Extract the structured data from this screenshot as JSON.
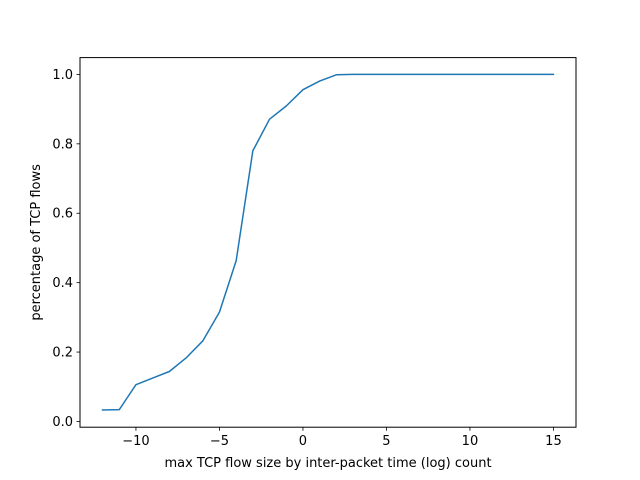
{
  "chart_data": {
    "type": "line",
    "title": "",
    "xlabel": "max TCP flow size by inter-packet time (log) count",
    "ylabel": "percentage of TCP flows",
    "xlim": [
      -13.35,
      16.35
    ],
    "ylim": [
      -0.0165,
      1.0485
    ],
    "x_ticks": [
      -10,
      -5,
      0,
      5,
      10,
      15
    ],
    "x_tick_labels": [
      "−10",
      "−5",
      "0",
      "5",
      "10",
      "15"
    ],
    "y_ticks": [
      0.0,
      0.2,
      0.4,
      0.6,
      0.8,
      1.0
    ],
    "y_tick_labels": [
      "0.0",
      "0.2",
      "0.4",
      "0.6",
      "0.8",
      "1.0"
    ],
    "grid": false,
    "legend": "none",
    "series": [
      {
        "color": "#1f77b4",
        "x": [
          -12,
          -11,
          -10,
          -9,
          -8,
          -7,
          -6,
          -5,
          -4,
          -3,
          -2,
          -1,
          0,
          1,
          2,
          3,
          4,
          5,
          6,
          7,
          8,
          9,
          10,
          11,
          12,
          13,
          14,
          15
        ],
        "y": [
          0.033,
          0.034,
          0.106,
          0.125,
          0.144,
          0.183,
          0.232,
          0.315,
          0.463,
          0.78,
          0.871,
          0.909,
          0.956,
          0.981,
          0.999,
          1.0,
          1.0,
          1.0,
          1.0,
          1.0,
          1.0,
          1.0,
          1.0,
          1.0,
          1.0,
          1.0,
          1.0,
          1.0
        ]
      }
    ]
  }
}
